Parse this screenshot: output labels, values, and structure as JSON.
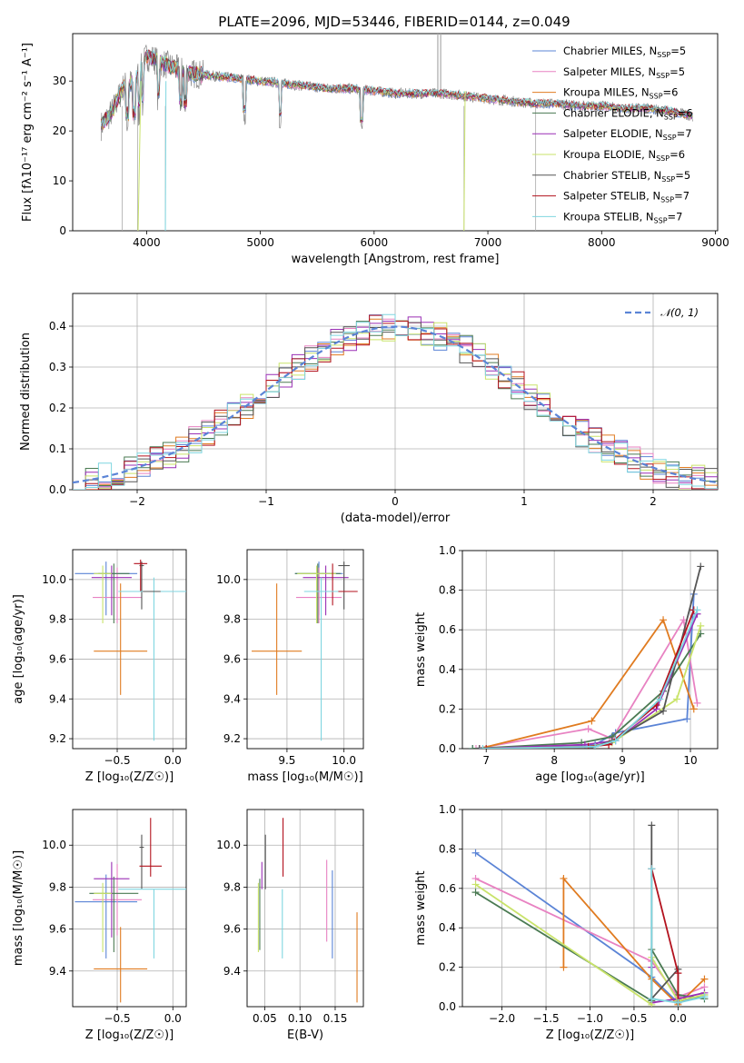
{
  "figure": {
    "title": "PLATE=2096, MJD=53446, FIBERID=0144, z=0.049"
  },
  "colors": {
    "Chabrier MILES": "#5b84d6",
    "Salpeter MILES": "#e882c2",
    "Kroupa MILES": "#e07b20",
    "Chabrier ELODIE": "#4a7a52",
    "Salpeter ELODIE": "#9a2fb5",
    "Kroupa ELODIE": "#c9e36a",
    "Chabrier STELIB": "#555555",
    "Salpeter STELIB": "#b3121e",
    "Kroupa STELIB": "#7fd6e0",
    "gaussian": "#5b84d6"
  },
  "chart_data": [
    {
      "id": "spectrum",
      "type": "line",
      "xlabel": "wavelength [Angstrom, rest frame]",
      "ylabel": "Flux [fλ10⁻¹⁷ erg cm⁻² s⁻¹ A⁻¹]",
      "xlim": [
        3350,
        9020
      ],
      "ylim": [
        0,
        39.5
      ],
      "xticks": [
        4000,
        5000,
        6000,
        7000,
        8000,
        9000
      ],
      "yticks": [
        0,
        10,
        20,
        30
      ],
      "legend": "top-right",
      "legend_entries": [
        {
          "name": "Chabrier MILES",
          "nssp": "5"
        },
        {
          "name": "Salpeter MILES",
          "nssp": "5"
        },
        {
          "name": "Kroupa MILES",
          "nssp": "6"
        },
        {
          "name": "Chabrier ELODIE",
          "nssp": "6"
        },
        {
          "name": "Salpeter ELODIE",
          "nssp": "7"
        },
        {
          "name": "Kroupa ELODIE",
          "nssp": "6"
        },
        {
          "name": "Chabrier STELIB",
          "nssp": "5"
        },
        {
          "name": "Salpeter STELIB",
          "nssp": "7"
        },
        {
          "name": "Kroupa STELIB",
          "nssp": "7"
        }
      ],
      "data_envelope": {
        "x": [
          3600,
          3700,
          3800,
          3900,
          4000,
          4100,
          4200,
          4300,
          4400,
          4600,
          4800,
          5000,
          5200,
          5400,
          5600,
          5800,
          6000,
          6200,
          6400,
          6600,
          6800,
          7000,
          7200,
          7400,
          7600,
          7800,
          8000,
          8200,
          8400,
          8600,
          8800
        ],
        "y": [
          21,
          24,
          29,
          30,
          35,
          34,
          33,
          32,
          31.5,
          31,
          30.5,
          30,
          29.5,
          29,
          28.5,
          28.5,
          28,
          27.5,
          27.5,
          27.5,
          27,
          26.5,
          26,
          25.5,
          25.5,
          25,
          25,
          24.5,
          24.5,
          24,
          23
        ]
      }
    },
    {
      "id": "residuals",
      "type": "histogram",
      "xlabel": "(data-model)/error",
      "ylabel": "Normed distribution",
      "xlim": [
        -2.5,
        2.5
      ],
      "ylim": [
        0,
        0.48
      ],
      "xticks": [
        -2,
        -1,
        0,
        1,
        2
      ],
      "yticks": [
        0.0,
        0.1,
        0.2,
        0.3,
        0.4
      ],
      "grid": true,
      "legend": "top-right",
      "gaussian_label": "𝒩(0, 1)",
      "bin_width": 0.1
    },
    {
      "id": "age-vs-Z",
      "type": "errorbar",
      "xlabel": "Z [log₁₀(Z/Z☉)]",
      "ylabel": "age  [log₁₀(age/yr)]",
      "xlim": [
        -0.9,
        0.12
      ],
      "ylim": [
        9.15,
        10.15
      ],
      "xticks": [
        -0.5,
        0.0
      ],
      "yticks": [
        9.2,
        9.4,
        9.6,
        9.8,
        10.0
      ],
      "grid": true,
      "points": [
        {
          "model": "Chabrier MILES",
          "x": -0.6,
          "xerr": 0.28,
          "y": 10.03,
          "yerr": [
            0.21,
            0.06
          ]
        },
        {
          "model": "Salpeter MILES",
          "x": -0.5,
          "xerr": 0.22,
          "y": 9.91,
          "yerr": [
            0.13,
            0.15
          ]
        },
        {
          "model": "Kroupa MILES",
          "x": -0.47,
          "xerr": 0.24,
          "y": 9.64,
          "yerr": [
            0.22,
            0.34
          ]
        },
        {
          "model": "Chabrier ELODIE",
          "x": -0.53,
          "xerr": 0.14,
          "y": 10.03,
          "yerr": [
            0.25,
            0.05
          ]
        },
        {
          "model": "Salpeter ELODIE",
          "x": -0.55,
          "xerr": 0.18,
          "y": 10.01,
          "yerr": [
            0.19,
            0.06
          ]
        },
        {
          "model": "Kroupa ELODIE",
          "x": -0.63,
          "xerr": 0.08,
          "y": 10.03,
          "yerr": [
            0.25,
            0.04
          ]
        },
        {
          "model": "Chabrier STELIB",
          "x": -0.28,
          "xerr": 0.02,
          "y": 10.07,
          "yerr": [
            0.22,
            0.02
          ]
        },
        {
          "model": "Salpeter STELIB",
          "x": -0.29,
          "xerr": 0.06,
          "y": 10.08,
          "yerr": [
            0.14,
            0.02
          ]
        },
        {
          "model": "Kroupa STELIB",
          "x": -0.17,
          "xerr": 0.32,
          "y": 9.94,
          "yerr": [
            0.75,
            0.07
          ]
        },
        {
          "model": "Chabrier STELIB",
          "x": -0.19,
          "xerr": 0.08,
          "y": 9.94,
          "yerr": [
            0.0,
            0.0
          ]
        }
      ]
    },
    {
      "id": "age-vs-mass",
      "type": "errorbar",
      "xlabel": "mass [log₁₀(M/M☉)]",
      "ylabel": "",
      "xlim": [
        9.15,
        10.17
      ],
      "ylim": [
        9.15,
        10.15
      ],
      "xticks": [
        9.5,
        10.0
      ],
      "yticks": [
        9.2,
        9.4,
        9.6,
        9.8,
        10.0
      ],
      "grid": true,
      "points": [
        {
          "model": "Chabrier MILES",
          "x": 9.78,
          "xerr": 0.21,
          "y": 10.03,
          "yerr": [
            0.21,
            0.06
          ]
        },
        {
          "model": "Salpeter MILES",
          "x": 9.78,
          "xerr": 0.2,
          "y": 9.91,
          "yerr": [
            0.13,
            0.15
          ]
        },
        {
          "model": "Kroupa MILES",
          "x": 9.41,
          "xerr": 0.22,
          "y": 9.64,
          "yerr": [
            0.22,
            0.34
          ]
        },
        {
          "model": "Chabrier ELODIE",
          "x": 9.77,
          "xerr": 0.2,
          "y": 10.03,
          "yerr": [
            0.25,
            0.05
          ]
        },
        {
          "model": "Salpeter ELODIE",
          "x": 9.84,
          "xerr": 0.2,
          "y": 10.01,
          "yerr": [
            0.19,
            0.06
          ]
        },
        {
          "model": "Kroupa ELODIE",
          "x": 9.76,
          "xerr": 0.17,
          "y": 10.03,
          "yerr": [
            0.25,
            0.04
          ]
        },
        {
          "model": "Chabrier STELIB",
          "x": 10.0,
          "xerr": 0.05,
          "y": 10.07,
          "yerr": [
            0.22,
            0.02
          ]
        },
        {
          "model": "Salpeter STELIB",
          "x": 9.9,
          "xerr": 0.22,
          "y": 9.94,
          "yerr": [
            0.07,
            0.14
          ]
        },
        {
          "model": "Kroupa STELIB",
          "x": 9.8,
          "xerr": 0.15,
          "y": 9.94,
          "yerr": [
            0.75,
            0.07
          ]
        }
      ]
    },
    {
      "id": "massweight-vs-age",
      "type": "line",
      "xlabel": "age  [log₁₀(age/yr)]",
      "ylabel": "mass weight",
      "xlim": [
        6.65,
        10.4
      ],
      "ylim": [
        0,
        1.0
      ],
      "xticks": [
        7,
        8,
        9,
        10
      ],
      "yticks": [
        0.0,
        0.2,
        0.4,
        0.6,
        0.8,
        1.0
      ],
      "grid": true,
      "series": [
        {
          "model": "Chabrier MILES",
          "x": [
            6.8,
            8.6,
            8.9,
            9.95,
            10.05
          ],
          "y": [
            0.0,
            0.02,
            0.08,
            0.15,
            0.78
          ]
        },
        {
          "model": "Salpeter MILES",
          "x": [
            6.85,
            8.5,
            8.85,
            9.9,
            10.1
          ],
          "y": [
            0.0,
            0.1,
            0.05,
            0.65,
            0.23
          ]
        },
        {
          "model": "Kroupa MILES",
          "x": [
            6.9,
            8.55,
            9.6,
            10.05
          ],
          "y": [
            0.0,
            0.14,
            0.65,
            0.2
          ]
        },
        {
          "model": "Chabrier ELODIE",
          "x": [
            6.8,
            8.4,
            8.85,
            9.6,
            10.15
          ],
          "y": [
            0.0,
            0.03,
            0.06,
            0.29,
            0.58
          ]
        },
        {
          "model": "Salpeter ELODIE",
          "x": [
            6.9,
            8.45,
            8.9,
            9.5,
            10.1
          ],
          "y": [
            0.0,
            0.02,
            0.04,
            0.2,
            0.68
          ]
        },
        {
          "model": "Kroupa ELODIE",
          "x": [
            7.0,
            8.5,
            8.85,
            9.8,
            10.15
          ],
          "y": [
            0.0,
            0.01,
            0.03,
            0.25,
            0.62
          ]
        },
        {
          "model": "Chabrier STELIB",
          "x": [
            6.9,
            8.5,
            8.85,
            9.6,
            10.15
          ],
          "y": [
            0.0,
            0.0,
            0.04,
            0.19,
            0.92
          ]
        },
        {
          "model": "Salpeter STELIB",
          "x": [
            7.0,
            8.5,
            8.8,
            9.5,
            10.05
          ],
          "y": [
            0.0,
            0.01,
            0.02,
            0.22,
            0.7
          ]
        },
        {
          "model": "Kroupa STELIB",
          "x": [
            6.95,
            8.6,
            8.9,
            9.55,
            10.1
          ],
          "y": [
            0.0,
            0.01,
            0.04,
            0.25,
            0.7
          ]
        }
      ]
    },
    {
      "id": "mass-vs-Z",
      "type": "errorbar",
      "xlabel": "Z [log₁₀(Z/Z☉)]",
      "ylabel": "mass [log₁₀(M/M☉)]",
      "xlim": [
        -0.9,
        0.12
      ],
      "ylim": [
        9.23,
        10.17
      ],
      "xticks": [
        -0.5,
        0.0
      ],
      "yticks": [
        9.4,
        9.6,
        9.8,
        10.0
      ],
      "grid": true,
      "points": [
        {
          "model": "Chabrier MILES",
          "x": -0.6,
          "xerr": 0.28,
          "y": 9.73,
          "yerr": [
            0.27,
            0.13
          ]
        },
        {
          "model": "Salpeter MILES",
          "x": -0.5,
          "xerr": 0.22,
          "y": 9.74,
          "yerr": [
            0.17,
            0.17
          ]
        },
        {
          "model": "Kroupa MILES",
          "x": -0.47,
          "xerr": 0.24,
          "y": 9.41,
          "yerr": [
            0.16,
            0.2
          ]
        },
        {
          "model": "Chabrier ELODIE",
          "x": -0.53,
          "xerr": 0.22,
          "y": 9.77,
          "yerr": [
            0.28,
            0.08
          ]
        },
        {
          "model": "Salpeter ELODIE",
          "x": -0.55,
          "xerr": 0.16,
          "y": 9.84,
          "yerr": [
            0.28,
            0.08
          ]
        },
        {
          "model": "Kroupa ELODIE",
          "x": -0.63,
          "xerr": 0.08,
          "y": 9.77,
          "yerr": [
            0.28,
            0.05
          ]
        },
        {
          "model": "Chabrier STELIB",
          "x": -0.28,
          "xerr": 0.02,
          "y": 9.99,
          "yerr": [
            0.2,
            0.06
          ]
        },
        {
          "model": "Salpeter STELIB",
          "x": -0.2,
          "xerr": 0.1,
          "y": 9.9,
          "yerr": [
            0.05,
            0.23
          ]
        },
        {
          "model": "Kroupa STELIB",
          "x": -0.17,
          "xerr": 0.32,
          "y": 9.79,
          "yerr": [
            0.33,
            0.0
          ]
        }
      ]
    },
    {
      "id": "ebv",
      "type": "errorbar",
      "xlabel": "E(B-V)",
      "ylabel": "",
      "xlim": [
        0.025,
        0.19
      ],
      "ylim": [
        9.23,
        10.17
      ],
      "xticks": [
        0.05,
        0.1,
        0.15
      ],
      "yticks": [
        9.4,
        9.6,
        9.8,
        10.0
      ],
      "grid": true,
      "points": [
        {
          "model": "Chabrier MILES",
          "x": 0.146,
          "y": 9.73,
          "yerr": [
            0.27,
            0.15
          ]
        },
        {
          "model": "Salpeter MILES",
          "x": 0.138,
          "y": 9.74,
          "yerr": [
            0.2,
            0.19
          ]
        },
        {
          "model": "Kroupa MILES",
          "x": 0.181,
          "y": 9.41,
          "yerr": [
            0.16,
            0.27
          ]
        },
        {
          "model": "Chabrier ELODIE",
          "x": 0.043,
          "y": 9.77,
          "yerr": [
            0.27,
            0.07
          ]
        },
        {
          "model": "Salpeter ELODIE",
          "x": 0.046,
          "y": 9.84,
          "yerr": [
            0.05,
            0.08
          ]
        },
        {
          "model": "Kroupa ELODIE",
          "x": 0.041,
          "y": 9.77,
          "yerr": [
            0.28,
            0.05
          ]
        },
        {
          "model": "Chabrier STELIB",
          "x": 0.051,
          "y": 9.99,
          "yerr": [
            0.2,
            0.06
          ]
        },
        {
          "model": "Salpeter STELIB",
          "x": 0.076,
          "y": 9.99,
          "yerr": [
            0.14,
            0.14
          ]
        },
        {
          "model": "Kroupa STELIB",
          "x": 0.075,
          "y": 9.79,
          "yerr": [
            0.33,
            0.0
          ]
        }
      ]
    },
    {
      "id": "massweight-vs-Z",
      "type": "line",
      "xlabel": "Z [log₁₀(Z/Z☉)]",
      "ylabel": "mass weight",
      "xlim": [
        -2.45,
        0.45
      ],
      "ylim": [
        0,
        1.0
      ],
      "xticks": [
        -2.0,
        -1.5,
        -1.0,
        -0.5,
        0.0
      ],
      "yticks": [
        0.0,
        0.2,
        0.4,
        0.6,
        0.8,
        1.0
      ],
      "grid": true,
      "series": [
        {
          "model": "Chabrier MILES",
          "x": [
            -2.3,
            -0.3,
            0.0,
            0.3
          ],
          "y": [
            0.78,
            0.15,
            0.02,
            0.06
          ]
        },
        {
          "model": "Salpeter MILES",
          "x": [
            -2.3,
            -0.3,
            0.0,
            0.3
          ],
          "y": [
            0.65,
            0.23,
            0.05,
            0.1
          ]
        },
        {
          "model": "Kroupa MILES",
          "x": [
            -1.3,
            -1.3,
            -0.3,
            0.0,
            0.3
          ],
          "y": [
            0.2,
            0.65,
            0.14,
            0.01,
            0.14
          ]
        },
        {
          "model": "Chabrier ELODIE",
          "x": [
            -2.3,
            -0.3,
            -0.3,
            0.0,
            0.3
          ],
          "y": [
            0.58,
            0.03,
            0.29,
            0.06,
            0.04
          ]
        },
        {
          "model": "Salpeter ELODIE",
          "x": [
            -0.3,
            -0.3,
            0.0,
            0.3
          ],
          "y": [
            0.2,
            0.02,
            0.04,
            0.07
          ]
        },
        {
          "model": "Kroupa ELODIE",
          "x": [
            -2.3,
            -0.3,
            -0.3,
            0.0,
            0.3
          ],
          "y": [
            0.62,
            0.01,
            0.25,
            0.03,
            0.06
          ]
        },
        {
          "model": "Chabrier STELIB",
          "x": [
            -0.3,
            -0.3,
            0.0,
            0.0
          ],
          "y": [
            0.92,
            0.04,
            0.19,
            0.0
          ]
        },
        {
          "model": "Salpeter STELIB",
          "x": [
            -0.3,
            0.0,
            0.0
          ],
          "y": [
            0.7,
            0.17,
            0.02
          ]
        },
        {
          "model": "Kroupa STELIB",
          "x": [
            -0.3,
            -0.3,
            0.0,
            0.3
          ],
          "y": [
            0.7,
            0.04,
            0.02,
            0.05
          ]
        }
      ]
    }
  ]
}
